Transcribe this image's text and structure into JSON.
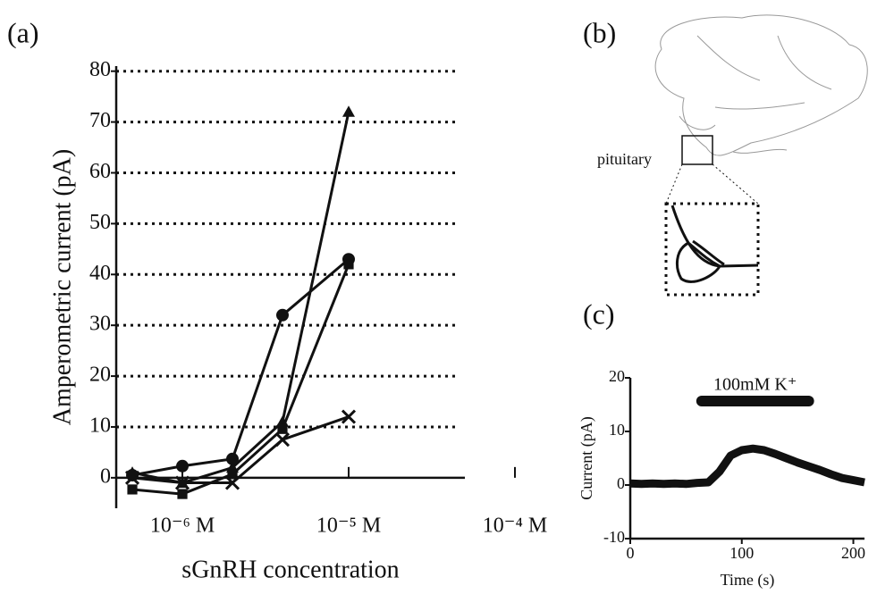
{
  "panel_labels": [
    "(a)",
    "(b)",
    "(c)"
  ],
  "diagram_label": "pituitary",
  "chart_data": [
    {
      "type": "line",
      "y_label": "Amperometric current (pA)",
      "x_label": "sGnRH concentration",
      "x": [
        5e-07,
        1e-06,
        2e-06,
        4e-06,
        1e-05
      ],
      "xscale": "log",
      "xlim": [
        4e-07,
        5e-05
      ],
      "xticks": [
        {
          "value": 1e-06,
          "label": "10⁻⁶ M"
        },
        {
          "value": 1e-05,
          "label": "10⁻⁵ M"
        },
        {
          "value": 0.0001,
          "label": "10⁻⁴ M"
        }
      ],
      "ylim": [
        -6,
        81
      ],
      "yticks": [
        0,
        10,
        20,
        30,
        40,
        50,
        60,
        70,
        80
      ],
      "grid": true,
      "series": [
        {
          "marker": "triangle",
          "color": "#111111",
          "values": [
            1,
            -1,
            2,
            11,
            72
          ]
        },
        {
          "marker": "circle",
          "color": "#111111",
          "values": [
            0.5,
            2.3,
            3.7,
            32,
            43
          ]
        },
        {
          "marker": "square",
          "color": "#111111",
          "values": [
            -2.3,
            -3.2,
            0.7,
            9.6,
            42
          ]
        },
        {
          "marker": "cross",
          "color": "#111111",
          "values": [
            0,
            -1,
            -1,
            7.5,
            12
          ]
        }
      ]
    },
    {
      "type": "line",
      "y_label": "Current (pA)",
      "x_label": "Time (s)",
      "x": [
        0,
        10,
        20,
        30,
        40,
        50,
        60,
        70,
        80,
        90,
        100,
        110,
        120,
        130,
        140,
        150,
        160,
        170,
        180,
        190,
        200,
        210
      ],
      "xlim": [
        0,
        210
      ],
      "xticks": [
        0,
        100,
        200
      ],
      "ylim": [
        -10,
        20
      ],
      "yticks": [
        -10,
        0,
        10,
        20
      ],
      "series": [
        {
          "color": "#111111",
          "values": [
            0.3,
            0.2,
            0.3,
            0.2,
            0.3,
            0.2,
            0.4,
            0.5,
            2.5,
            5.5,
            6.5,
            6.8,
            6.5,
            5.8,
            5,
            4.2,
            3.5,
            2.8,
            2,
            1.3,
            0.9,
            0.5
          ]
        }
      ],
      "annotations": [
        {
          "text": "100mM K⁺",
          "x": [
            64,
            160
          ]
        }
      ]
    }
  ]
}
